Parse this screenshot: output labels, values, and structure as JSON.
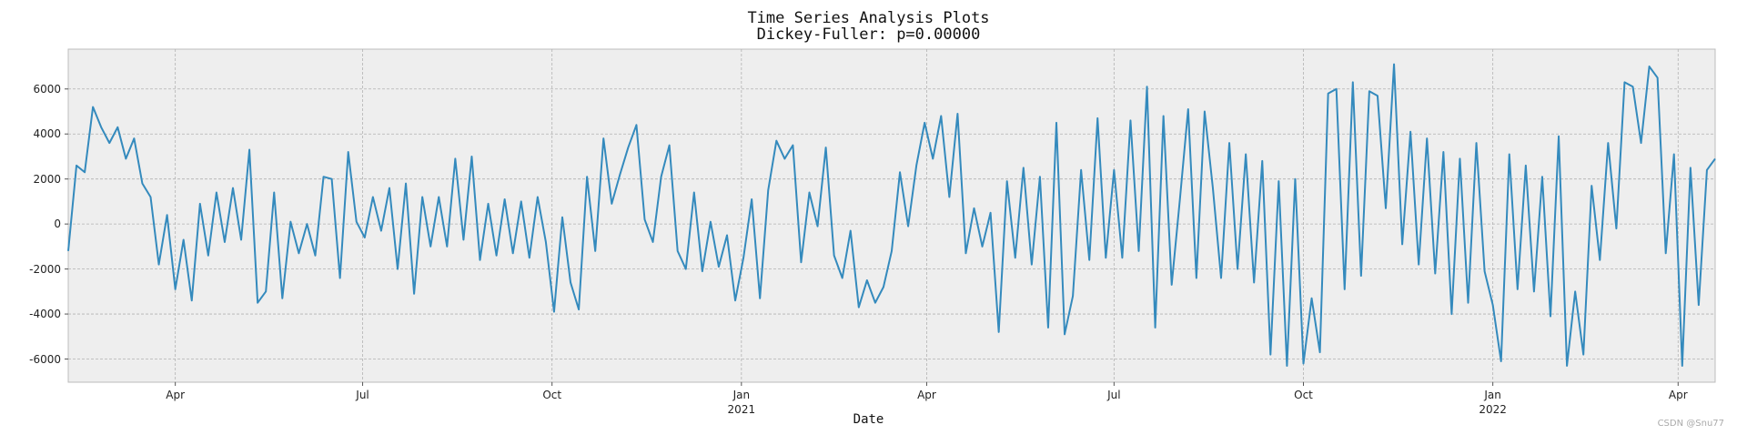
{
  "chart_data": {
    "type": "line",
    "title": "Time Series Analysis Plots",
    "subtitle": "Dickey-Fuller: p=0.00000",
    "x_label": "Date",
    "watermark": "CSDN @Snu77",
    "color": "#348ABD",
    "grid": true,
    "xlim": [
      0,
      200
    ],
    "ylim": [
      -7030,
      7770
    ],
    "yticks": [
      -6000,
      -4000,
      -2000,
      0,
      2000,
      4000,
      6000
    ],
    "xticks": [
      {
        "value": 13,
        "label": "Apr"
      },
      {
        "value": 35.75,
        "label": "Jul"
      },
      {
        "value": 58.75,
        "label": "Oct"
      },
      {
        "value": 81.75,
        "label": "Jan\n2021"
      },
      {
        "value": 104.25,
        "label": "Apr"
      },
      {
        "value": 127,
        "label": "Jul"
      },
      {
        "value": 150,
        "label": "Oct"
      },
      {
        "value": 173,
        "label": "Jan\n2022"
      },
      {
        "value": 195.5,
        "label": "Apr"
      }
    ],
    "values": [
      -1200,
      2600,
      2300,
      5200,
      4300,
      3600,
      4300,
      2900,
      3800,
      1800,
      1200,
      -1800,
      400,
      -2900,
      -700,
      -3400,
      900,
      -1400,
      1400,
      -800,
      1600,
      -700,
      3300,
      -3500,
      -3000,
      1400,
      -3300,
      100,
      -1300,
      0,
      -1400,
      2100,
      2000,
      -2400,
      3200,
      100,
      -600,
      1200,
      -300,
      1600,
      -2000,
      1800,
      -3100,
      1200,
      -1000,
      1200,
      -1000,
      2900,
      -700,
      3000,
      -1600,
      900,
      -1400,
      1100,
      -1300,
      1000,
      -1500,
      1200,
      -800,
      -3900,
      300,
      -2600,
      -3800,
      2100,
      -1200,
      3800,
      900,
      2200,
      3400,
      4400,
      200,
      -800,
      2100,
      3500,
      -1200,
      -2000,
      1400,
      -2100,
      100,
      -1900,
      -500,
      -3400,
      -1500,
      1100,
      -3300,
      1500,
      3700,
      2900,
      3500,
      -1700,
      1400,
      -100,
      3400,
      -1400,
      -2400,
      -300,
      -3700,
      -2500,
      -3500,
      -2800,
      -1200,
      2300,
      -100,
      2600,
      4500,
      2900,
      4800,
      1200,
      4900,
      -1300,
      700,
      -1000,
      500,
      -4800,
      1900,
      -1500,
      2500,
      -1800,
      2100,
      -4600,
      4500,
      -4900,
      -3200,
      2400,
      -1600,
      4700,
      -1500,
      2400,
      -1500,
      4600,
      -1200,
      6100,
      -4600,
      4800,
      -2700,
      1100,
      5100,
      -2400,
      5000,
      1600,
      -2400,
      3600,
      -2000,
      3100,
      -2600,
      2800,
      -5800,
      1900,
      -6300,
      2000,
      -6200,
      -3300,
      -5700,
      5800,
      6000,
      -2900,
      6300,
      -2300,
      5900,
      5700,
      700,
      7100,
      -900,
      4100,
      -1800,
      3800,
      -2200,
      3200,
      -4000,
      2900,
      -3500,
      3600,
      -2100,
      -3600,
      -6100,
      3100,
      -2900,
      2600,
      -3000,
      2100,
      -4100,
      3900,
      -6300,
      -3000,
      -5800,
      1700,
      -1600,
      3600,
      -200,
      6300,
      6100,
      3600,
      7000,
      6500,
      -1300,
      3100,
      -6300,
      2500,
      -3600,
      2400,
      2900
    ]
  }
}
